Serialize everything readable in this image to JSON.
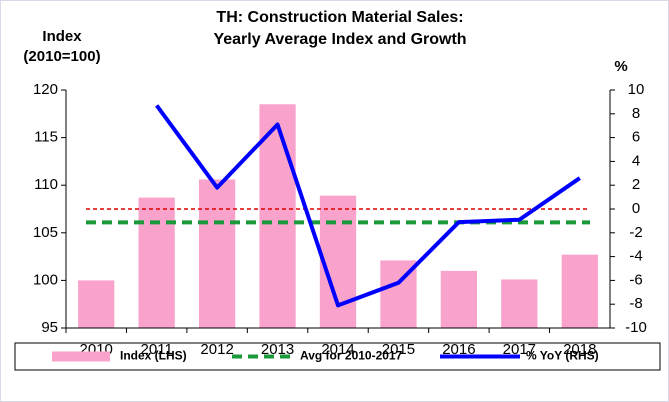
{
  "chart_data": {
    "type": "bar_line",
    "title": [
      "TH: Construction Material Sales:",
      "Yearly Average Index and Growth"
    ],
    "y_label": [
      "Index",
      "(2010=100)"
    ],
    "y2_label": "%",
    "categories": [
      "2010",
      "2011",
      "2012",
      "2013",
      "2014",
      "2015",
      "2016",
      "2017",
      "2018"
    ],
    "series": [
      {
        "name": "Index (LHS)",
        "type": "bar",
        "color": "#f9a3cc",
        "axis": "y",
        "values": [
          100,
          108.7,
          110.6,
          118.5,
          108.9,
          102.1,
          101,
          100.1,
          102.7
        ]
      },
      {
        "name": "Avg for 2010-2017",
        "type": "hline",
        "color": "#1a9a3a",
        "dash": "10,6",
        "axis": "y",
        "value": 106.1
      },
      {
        "name": "% YoY (RHS)",
        "type": "line",
        "color": "#0000ff",
        "axis": "y2",
        "values": [
          null,
          8.7,
          1.8,
          7.1,
          -8.1,
          -6.2,
          -1.1,
          -0.9,
          2.6
        ]
      }
    ],
    "reference_line": {
      "axis": "y2",
      "value": 0,
      "color": "#e00000",
      "dash": "4,3"
    },
    "ylim": [
      95,
      120
    ],
    "yticks": [
      95,
      100,
      105,
      110,
      115,
      120
    ],
    "y2lim": [
      -10,
      10
    ],
    "y2ticks": [
      -10,
      -8,
      -6,
      -4,
      -2,
      0,
      2,
      4,
      6,
      8,
      10
    ],
    "legend": "bottom"
  }
}
